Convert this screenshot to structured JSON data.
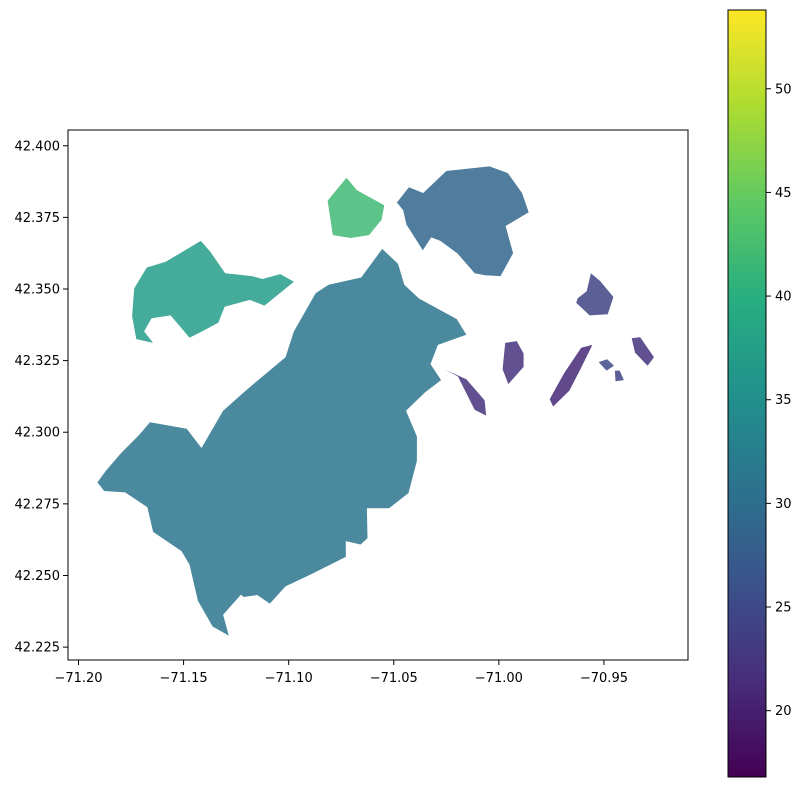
{
  "chart_data": {
    "type": "heatmap",
    "title": "",
    "xlabel": "",
    "ylabel": "",
    "xlim": [
      -71.205,
      -70.91
    ],
    "ylim": [
      42.2205,
      42.4055
    ],
    "x_ticks": [
      {
        "value": -71.2,
        "label": "−71.20"
      },
      {
        "value": -71.15,
        "label": "−71.15"
      },
      {
        "value": -71.1,
        "label": "−71.10"
      },
      {
        "value": -71.05,
        "label": "−71.05"
      },
      {
        "value": -71.0,
        "label": "−71.00"
      },
      {
        "value": -70.95,
        "label": "−70.95"
      }
    ],
    "y_ticks": [
      {
        "value": 42.225,
        "label": "42.225"
      },
      {
        "value": 42.25,
        "label": "42.250"
      },
      {
        "value": 42.275,
        "label": "42.275"
      },
      {
        "value": 42.3,
        "label": "42.300"
      },
      {
        "value": 42.325,
        "label": "42.325"
      },
      {
        "value": 42.35,
        "label": "42.350"
      },
      {
        "value": 42.375,
        "label": "42.375"
      },
      {
        "value": 42.4,
        "label": "42.400"
      }
    ],
    "colorbar": {
      "colormap": "viridis",
      "range": [
        16.8,
        53.8
      ],
      "ticks": [
        {
          "value": 20,
          "label": "20"
        },
        {
          "value": 25,
          "label": "25"
        },
        {
          "value": 30,
          "label": "30"
        },
        {
          "value": 35,
          "label": "35"
        },
        {
          "value": 40,
          "label": "40"
        },
        {
          "value": 45,
          "label": "45"
        },
        {
          "value": 50,
          "label": "50"
        }
      ]
    },
    "regions": [
      {
        "name": "main",
        "value": 31,
        "points": [
          [
            -71.191,
            42.2825
          ],
          [
            -71.187,
            42.2865
          ],
          [
            -71.18,
            42.2925
          ],
          [
            -71.1715,
            42.2988
          ],
          [
            -71.166,
            42.3035
          ],
          [
            -71.1485,
            42.3012
          ],
          [
            -71.1415,
            42.2945
          ],
          [
            -71.1312,
            42.3075
          ],
          [
            -71.1205,
            42.3145
          ],
          [
            -71.1015,
            42.3262
          ],
          [
            -71.0975,
            42.3352
          ],
          [
            -71.0872,
            42.3485
          ],
          [
            -71.081,
            42.3515
          ],
          [
            -71.0655,
            42.354
          ],
          [
            -71.058,
            42.3615
          ],
          [
            -71.0555,
            42.364
          ],
          [
            -71.048,
            42.3588
          ],
          [
            -71.045,
            42.3515
          ],
          [
            -71.038,
            42.3467
          ],
          [
            -71.02,
            42.3395
          ],
          [
            -71.0155,
            42.334
          ],
          [
            -71.029,
            42.3305
          ],
          [
            -71.0325,
            42.3238
          ],
          [
            -71.0275,
            42.3182
          ],
          [
            -71.035,
            42.314
          ],
          [
            -71.0442,
            42.3075
          ],
          [
            -71.039,
            42.2985
          ],
          [
            -71.039,
            42.29
          ],
          [
            -71.043,
            42.2788
          ],
          [
            -71.0522,
            42.2735
          ],
          [
            -71.0628,
            42.2735
          ],
          [
            -71.0625,
            42.263
          ],
          [
            -71.0658,
            42.2608
          ],
          [
            -71.0728,
            42.262
          ],
          [
            -71.0728,
            42.2565
          ],
          [
            -71.0892,
            42.2505
          ],
          [
            -71.1015,
            42.2462
          ],
          [
            -71.109,
            42.2402
          ],
          [
            -71.115,
            42.2432
          ],
          [
            -71.1215,
            42.2425
          ],
          [
            -71.1305,
            42.2485
          ],
          [
            -71.1262,
            42.2555
          ],
          [
            -71.1215,
            42.2555
          ],
          [
            -71.1215,
            42.2443
          ],
          [
            -71.1312,
            42.2363
          ],
          [
            -71.1285,
            42.229
          ],
          [
            -71.1362,
            42.2322
          ],
          [
            -71.1432,
            42.2412
          ],
          [
            -71.1472,
            42.2538
          ],
          [
            -71.151,
            42.2585
          ],
          [
            -71.1645,
            42.2652
          ],
          [
            -71.1672,
            42.2738
          ],
          [
            -71.1778,
            42.279
          ],
          [
            -71.1878,
            42.2795
          ]
        ]
      },
      {
        "name": "brighton",
        "value": 37,
        "points": [
          [
            -71.1735,
            42.3502
          ],
          [
            -71.1675,
            42.3575
          ],
          [
            -71.1585,
            42.3595
          ],
          [
            -71.1418,
            42.3668
          ],
          [
            -71.1375,
            42.3632
          ],
          [
            -71.1302,
            42.3555
          ],
          [
            -71.1175,
            42.3545
          ],
          [
            -71.1125,
            42.3535
          ],
          [
            -71.104,
            42.3552
          ],
          [
            -71.0975,
            42.3525
          ],
          [
            -71.1115,
            42.3442
          ],
          [
            -71.1185,
            42.3462
          ],
          [
            -71.1305,
            42.3438
          ],
          [
            -71.1335,
            42.3382
          ],
          [
            -71.1412,
            42.3352
          ],
          [
            -71.1472,
            42.333
          ],
          [
            -71.1512,
            42.3365
          ],
          [
            -71.1562,
            42.3408
          ],
          [
            -71.1652,
            42.3398
          ],
          [
            -71.1688,
            42.3352
          ],
          [
            -71.1645,
            42.3312
          ],
          [
            -71.1725,
            42.3325
          ],
          [
            -71.1745,
            42.3405
          ]
        ]
      },
      {
        "name": "charlestown",
        "value": 42,
        "points": [
          [
            -71.0725,
            42.3888
          ],
          [
            -71.0815,
            42.3808
          ],
          [
            -71.079,
            42.3688
          ],
          [
            -71.0705,
            42.3678
          ],
          [
            -71.0618,
            42.3688
          ],
          [
            -71.0558,
            42.3742
          ],
          [
            -71.0545,
            42.3792
          ],
          [
            -71.0675,
            42.3845
          ]
        ]
      },
      {
        "name": "east-boston",
        "value": 29,
        "points": [
          [
            -71.0485,
            42.3802
          ],
          [
            -71.0428,
            42.3855
          ],
          [
            -71.036,
            42.3835
          ],
          [
            -71.025,
            42.3912
          ],
          [
            -71.0045,
            42.3928
          ],
          [
            -70.9958,
            42.3905
          ],
          [
            -70.989,
            42.3835
          ],
          [
            -70.9858,
            42.3768
          ],
          [
            -70.9968,
            42.372
          ],
          [
            -70.9932,
            42.3625
          ],
          [
            -70.9992,
            42.3545
          ],
          [
            -71.0065,
            42.3548
          ],
          [
            -71.0115,
            42.3555
          ],
          [
            -71.0198,
            42.3625
          ],
          [
            -71.0278,
            42.3668
          ],
          [
            -71.0322,
            42.368
          ],
          [
            -71.0362,
            42.3635
          ],
          [
            -71.044,
            42.3725
          ],
          [
            -71.0455,
            42.3775
          ]
        ]
      },
      {
        "name": "islands-a",
        "value": 22,
        "points": [
          [
            -71.0255,
            42.3218
          ],
          [
            -71.0195,
            42.3195
          ],
          [
            -71.0115,
            42.3078
          ],
          [
            -71.006,
            42.3058
          ],
          [
            -71.0068,
            42.3112
          ],
          [
            -71.0155,
            42.3185
          ]
        ]
      },
      {
        "name": "islands-b",
        "value": 22,
        "points": [
          [
            -70.9955,
            42.3168
          ],
          [
            -70.9882,
            42.3228
          ],
          [
            -70.9882,
            42.3275
          ],
          [
            -70.9915,
            42.3318
          ],
          [
            -70.997,
            42.3312
          ],
          [
            -70.9982,
            42.322
          ]
        ]
      },
      {
        "name": "islands-c",
        "value": 21,
        "points": [
          [
            -70.9728,
            42.3155
          ],
          [
            -70.9688,
            42.3208
          ],
          [
            -70.9608,
            42.3295
          ],
          [
            -70.9555,
            42.3305
          ],
          [
            -70.9612,
            42.322
          ],
          [
            -70.9665,
            42.3145
          ],
          [
            -70.9742,
            42.309
          ],
          [
            -70.9758,
            42.3115
          ]
        ]
      },
      {
        "name": "islands-d",
        "value": 24,
        "points": [
          [
            -70.9625,
            42.3468
          ],
          [
            -70.9582,
            42.3492
          ],
          [
            -70.9562,
            42.3555
          ],
          [
            -70.9518,
            42.3528
          ],
          [
            -70.9455,
            42.3472
          ],
          [
            -70.9482,
            42.3412
          ],
          [
            -70.9568,
            42.3408
          ],
          [
            -70.9632,
            42.3452
          ]
        ]
      },
      {
        "name": "islands-e",
        "value": 22,
        "points": [
          [
            -70.9368,
            42.3328
          ],
          [
            -70.9328,
            42.3332
          ],
          [
            -70.9262,
            42.3262
          ],
          [
            -70.9292,
            42.3232
          ],
          [
            -70.9352,
            42.3278
          ]
        ]
      },
      {
        "name": "islands-f",
        "value": 25,
        "points": [
          [
            -70.9525,
            42.3245
          ],
          [
            -70.9485,
            42.3255
          ],
          [
            -70.9452,
            42.3232
          ],
          [
            -70.9488,
            42.3215
          ]
        ]
      },
      {
        "name": "islands-g",
        "value": 24,
        "points": [
          [
            -70.9448,
            42.3215
          ],
          [
            -70.9425,
            42.3215
          ],
          [
            -70.9405,
            42.3182
          ],
          [
            -70.9445,
            42.3178
          ]
        ]
      }
    ]
  }
}
